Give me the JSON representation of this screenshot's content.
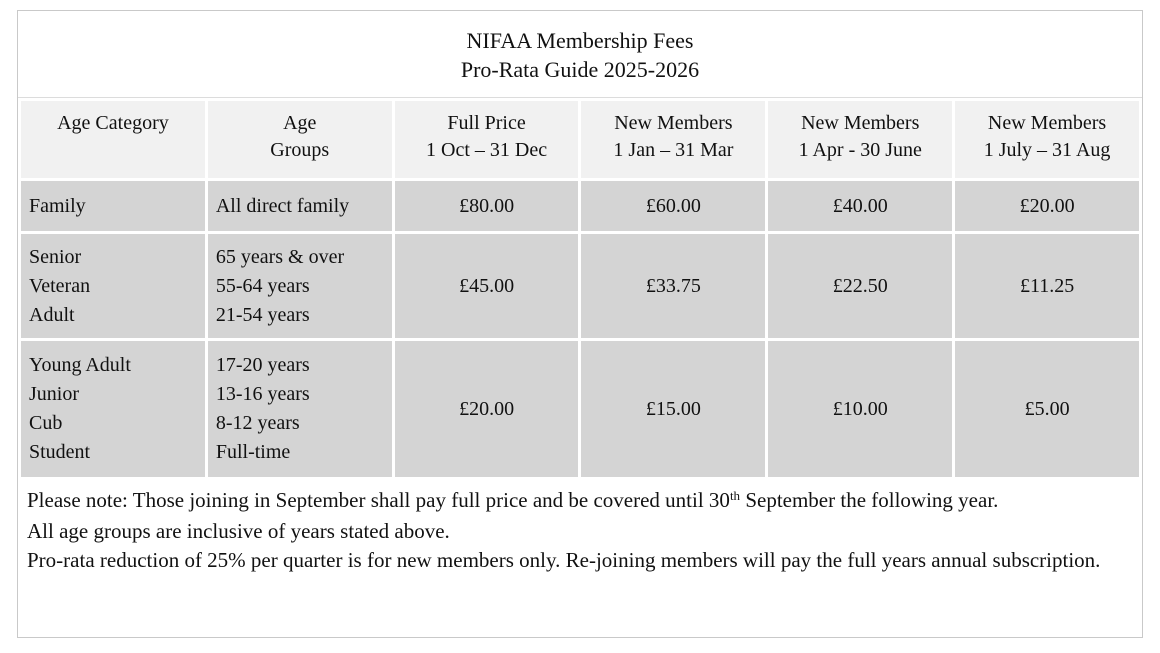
{
  "title": {
    "line1": "NIFAA Membership Fees",
    "line2": "Pro-Rata Guide 2025-2026"
  },
  "table": {
    "headers": [
      [
        "Age Category"
      ],
      [
        "Age",
        "Groups"
      ],
      [
        "Full Price",
        "1 Oct – 31 Dec"
      ],
      [
        "New Members",
        "1 Jan – 31 Mar"
      ],
      [
        "New Members",
        "1 Apr - 30 June"
      ],
      [
        "New Members",
        "1 July – 31 Aug"
      ]
    ],
    "rows": [
      {
        "categories": [
          "Family"
        ],
        "groups": [
          "All direct family"
        ],
        "prices": [
          "£80.00",
          "£60.00",
          "£40.00",
          "£20.00"
        ]
      },
      {
        "categories": [
          "Senior",
          "Veteran",
          "Adult"
        ],
        "groups": [
          "65 years & over",
          "55-64 years",
          "21-54 years"
        ],
        "prices": [
          "£45.00",
          "£33.75",
          "£22.50",
          "£11.25"
        ]
      },
      {
        "categories": [
          "Young Adult",
          "Junior",
          "Cub",
          "Student"
        ],
        "groups": [
          "17-20 years",
          "13-16 years",
          "8-12 years",
          "Full-time"
        ],
        "prices": [
          "£20.00",
          "£15.00",
          "£10.00",
          "£5.00"
        ]
      }
    ]
  },
  "notes": {
    "note1_before_sup": "Please note: Those joining in September shall pay full price and be covered until 30",
    "note1_sup": "th",
    "note1_after_sup": " September the following year.",
    "note2": "All age groups are inclusive of years stated above.",
    "note3": "Pro-rata reduction of 25% per quarter is for new members only. Re-joining members will pay the full years annual subscription."
  },
  "colors": {
    "header_cell_bg": "#f1f1f1",
    "data_cell_bg": "#d4d4d4",
    "outer_border": "#c9c9c9",
    "grid_gap": "#ffffff",
    "text": "#111111"
  }
}
